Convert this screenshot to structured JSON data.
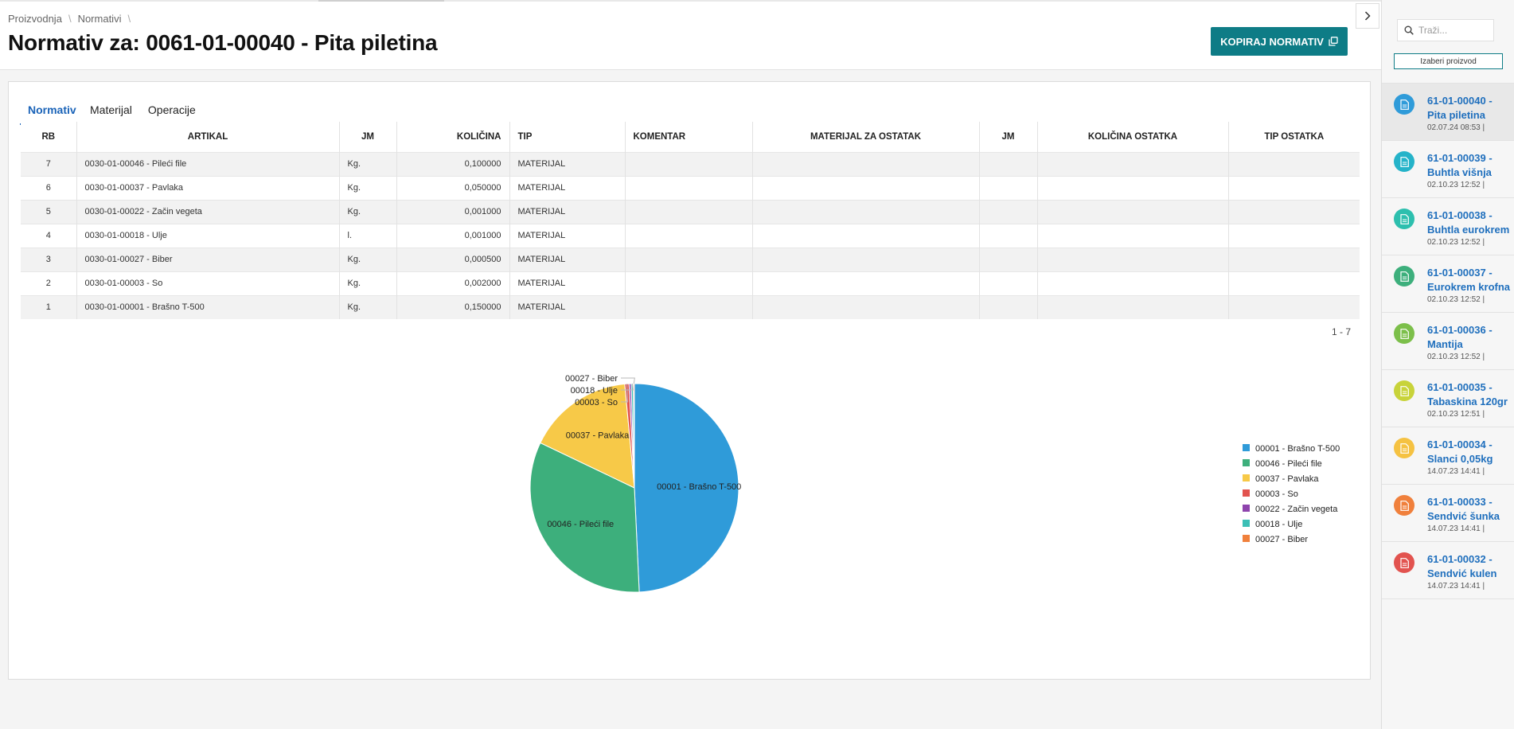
{
  "breadcrumb": {
    "item1": "Proizvodnja",
    "item2": "Normativi",
    "sep": "\\"
  },
  "header": {
    "title_prefix": "Normativ za:",
    "title_value": "0061-01-00040 - Pita piletina",
    "copy_button": "KOPIRAJ NORMATIV"
  },
  "tabs": [
    {
      "label": "Normativ",
      "active": true
    },
    {
      "label": "Materijal",
      "active": false
    },
    {
      "label": "Operacije",
      "active": false
    }
  ],
  "table": {
    "columns": [
      "RB",
      "ARTIKAL",
      "JM",
      "KOLIČINA",
      "TIP",
      "KOMENTAR",
      "MATERIJAL ZA OSTATAK",
      "JM",
      "KOLIČINA OSTATKA",
      "TIP OSTATKA"
    ],
    "rows": [
      {
        "rb": "7",
        "artikal": "0030-01-00046 - Pileći file",
        "jm": "Kg.",
        "kolicina": "0,100000",
        "tip": "MATERIJAL"
      },
      {
        "rb": "6",
        "artikal": "0030-01-00037 - Pavlaka",
        "jm": "Kg.",
        "kolicina": "0,050000",
        "tip": "MATERIJAL"
      },
      {
        "rb": "5",
        "artikal": "0030-01-00022 - Začin vegeta",
        "jm": "Kg.",
        "kolicina": "0,001000",
        "tip": "MATERIJAL"
      },
      {
        "rb": "4",
        "artikal": "0030-01-00018 - Ulje",
        "jm": "l.",
        "kolicina": "0,001000",
        "tip": "MATERIJAL"
      },
      {
        "rb": "3",
        "artikal": "0030-01-00027 - Biber",
        "jm": "Kg.",
        "kolicina": "0,000500",
        "tip": "MATERIJAL"
      },
      {
        "rb": "2",
        "artikal": "0030-01-00003 - So",
        "jm": "Kg.",
        "kolicina": "0,002000",
        "tip": "MATERIJAL"
      },
      {
        "rb": "1",
        "artikal": "0030-01-00001 - Brašno T-500",
        "jm": "Kg.",
        "kolicina": "0,150000",
        "tip": "MATERIJAL"
      }
    ],
    "pager": "1 - 7"
  },
  "chart_data": {
    "type": "pie",
    "slices": [
      {
        "label": "00001 - Brašno T-500",
        "value": 0.15,
        "color": "#2f9bd9"
      },
      {
        "label": "00046 - Pileći file",
        "value": 0.1,
        "color": "#3daf7c"
      },
      {
        "label": "00037 - Pavlaka",
        "value": 0.05,
        "color": "#f7c948"
      },
      {
        "label": "00003 - So",
        "value": 0.002,
        "color": "#e2534f"
      },
      {
        "label": "00022 - Začin vegeta",
        "value": 0.001,
        "color": "#8e44ad"
      },
      {
        "label": "00018 - Ulje",
        "value": 0.001,
        "color": "#3cbfb6"
      },
      {
        "label": "00027 - Biber",
        "value": 0.0005,
        "color": "#f0803c"
      }
    ],
    "legend_position": "right"
  },
  "sidebar": {
    "search_placeholder": "Traži...",
    "choose_button": "Izaberi proizvod",
    "products": [
      {
        "title": "61-01-00040 - Pita piletina",
        "date": "02.07.24 08:53 |",
        "color": "#2f9bd9",
        "active": true
      },
      {
        "title": "61-01-00039 - Buhtla višnja",
        "date": "02.10.23 12:52 |",
        "color": "#25b3c9",
        "active": false
      },
      {
        "title": "61-01-00038 - Buhtla eurokrem",
        "date": "02.10.23 12:52 |",
        "color": "#2dbfae",
        "active": false
      },
      {
        "title": "61-01-00037 - Eurokrem krofna",
        "date": "02.10.23 12:52 |",
        "color": "#3daf7c",
        "active": false
      },
      {
        "title": "61-01-00036 - Mantija",
        "date": "02.10.23 12:52 |",
        "color": "#7cbf4a",
        "active": false
      },
      {
        "title": "61-01-00035 - Tabaskina 120gr",
        "date": "02.10.23 12:51 |",
        "color": "#c8d33a",
        "active": false
      },
      {
        "title": "61-01-00034 - Slanci 0,05kg",
        "date": "14.07.23 14:41 |",
        "color": "#f5c242",
        "active": false
      },
      {
        "title": "61-01-00033 - Sendvić šunka",
        "date": "14.07.23 14:41 |",
        "color": "#f0803c",
        "active": false
      },
      {
        "title": "61-01-00032 - Sendvić kulen",
        "date": "14.07.23 14:41 |",
        "color": "#e2534f",
        "active": false
      }
    ]
  }
}
